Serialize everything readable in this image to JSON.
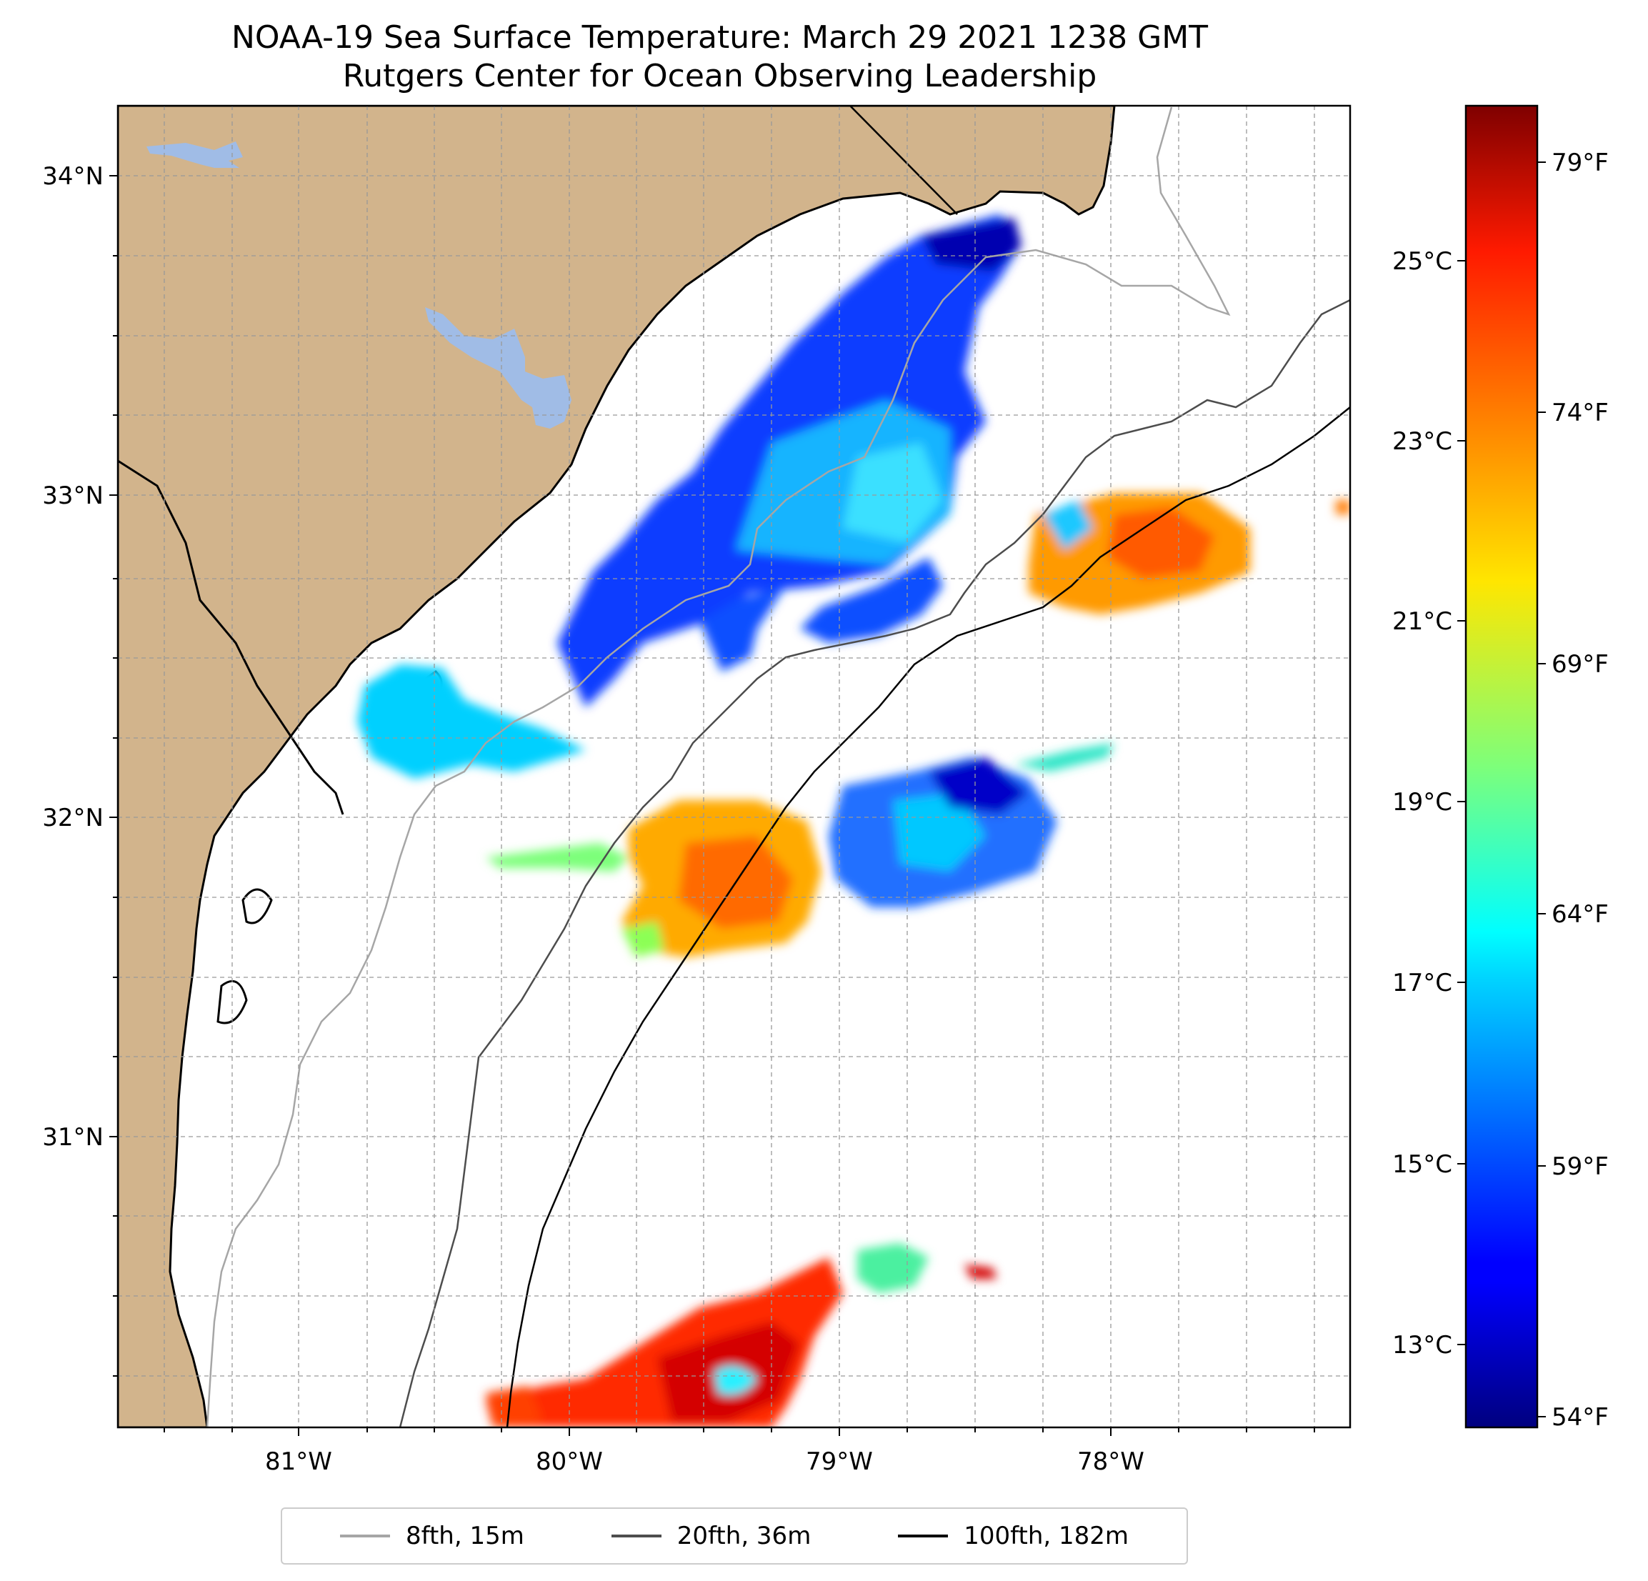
{
  "title": {
    "line1": "NOAA-19 Sea Surface Temperature: March 29 2021 1238 GMT",
    "line2": "Rutgers Center for Ocean Observing Leadership"
  },
  "axes": {
    "lon_ticks": [
      "81°W",
      "80°W",
      "79°W",
      "78°W"
    ],
    "lat_ticks": [
      "34°N",
      "33°N",
      "32°N",
      "31°N"
    ]
  },
  "colorbar": {
    "celsius_ticks": [
      "25°C",
      "23°C",
      "21°C",
      "19°C",
      "17°C",
      "15°C",
      "13°C"
    ],
    "fahrenheit_ticks": [
      "79°F",
      "74°F",
      "69°F",
      "64°F",
      "59°F",
      "54°F"
    ],
    "colormap": "jet"
  },
  "legend": [
    {
      "label": "8fth, 15m",
      "color": "#a6a6a6"
    },
    {
      "label": "20fth, 36m",
      "color": "#4d4d4d"
    },
    {
      "label": "100fth, 182m",
      "color": "#000000"
    }
  ],
  "colors": {
    "land": "#d2b48c",
    "lakes": "#a0bce6",
    "ocean": "#ffffff"
  }
}
